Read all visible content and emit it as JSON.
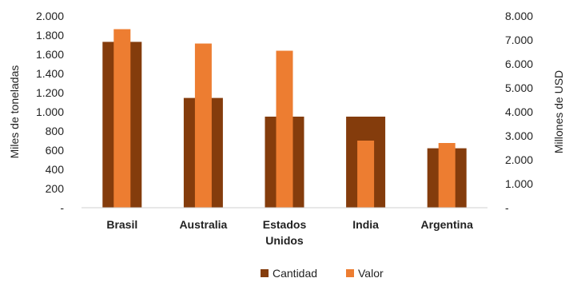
{
  "chart_data": {
    "type": "bar",
    "categories": [
      "Brasil",
      "Australia",
      "Estados Unidos",
      "India",
      "Argentina"
    ],
    "category_lines": [
      [
        "Brasil"
      ],
      [
        "Australia"
      ],
      [
        "Estados",
        "Unidos"
      ],
      [
        "India"
      ],
      [
        "Argentina"
      ]
    ],
    "series": [
      {
        "name": "Cantidad",
        "axis": "left",
        "values": [
          1730,
          1145,
          950,
          950,
          620
        ],
        "color": "#843C0C"
      },
      {
        "name": "Valor",
        "axis": "right",
        "values": [
          7450,
          6850,
          6550,
          2800,
          2700
        ],
        "color": "#ED7D31"
      }
    ],
    "ylabel": "Miles de toneladas",
    "y2label": "Millones de USD",
    "ylim": [
      0,
      2000
    ],
    "y2lim": [
      0,
      8000
    ],
    "yticks": [
      "-",
      "200",
      "400",
      "600",
      "800",
      "1.000",
      "1.200",
      "1.400",
      "1.600",
      "1.800",
      "2.000"
    ],
    "y2ticks": [
      "-",
      "1.000",
      "2.000",
      "3.000",
      "4.000",
      "5.000",
      "6.000",
      "7.000",
      "8.000"
    ],
    "grid": false,
    "legend_position": "bottom"
  }
}
